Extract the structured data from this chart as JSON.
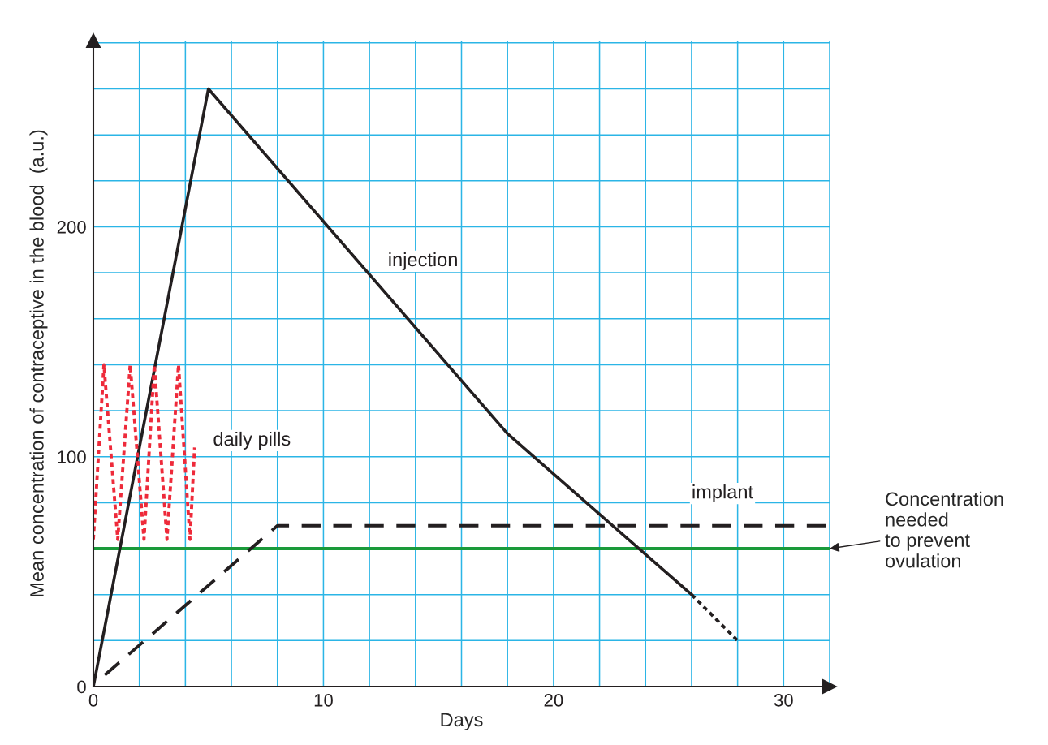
{
  "chart_data": {
    "type": "line",
    "xlabel": "Days",
    "ylabel": "Mean concentration of contraceptive in the blood  (a.u.)",
    "xlim": [
      0,
      32
    ],
    "ylim": [
      0,
      281
    ],
    "xticks": [
      0,
      {
        "value": 2,
        "label": null
      },
      {
        "value": 4,
        "label": null
      },
      {
        "value": 6,
        "label": null
      },
      {
        "value": 8,
        "label": null
      },
      10,
      {
        "value": 12,
        "label": null
      },
      {
        "value": 14,
        "label": null
      },
      {
        "value": 16,
        "label": null
      },
      {
        "value": 18,
        "label": null
      },
      20,
      {
        "value": 22,
        "label": null
      },
      {
        "value": 24,
        "label": null
      },
      {
        "value": 26,
        "label": null
      },
      {
        "value": 28,
        "label": null
      },
      30,
      {
        "value": 32,
        "label": null
      }
    ],
    "yticks": [
      0,
      {
        "value": 20,
        "label": null
      },
      {
        "value": 40,
        "label": null
      },
      {
        "value": 60,
        "label": null
      },
      {
        "value": 80,
        "label": null
      },
      100,
      {
        "value": 120,
        "label": null
      },
      {
        "value": 140,
        "label": null
      },
      {
        "value": 160,
        "label": null
      },
      {
        "value": 180,
        "label": null
      },
      200,
      {
        "value": 220,
        "label": null
      },
      {
        "value": 240,
        "label": null
      },
      {
        "value": 260,
        "label": null
      },
      {
        "value": 280,
        "label": null
      }
    ],
    "grid": true,
    "legend": false,
    "marker": "none",
    "series": [
      {
        "name": "injection",
        "color": "#231f20",
        "line_style": "solid",
        "x": [
          0,
          5,
          18,
          26
        ],
        "values": [
          0,
          260,
          110,
          40
        ]
      },
      {
        "color": "#231f20",
        "line_style": "dotted",
        "x": [
          26,
          28
        ],
        "values": [
          40,
          20
        ]
      },
      {
        "name": "daily pills",
        "color": "#ee2a3a",
        "line_style": "dotted",
        "x": [
          0,
          0.46,
          1.06,
          1.6,
          2.2,
          2.65,
          3.2,
          3.7,
          4.2,
          4.4
        ],
        "values": [
          64,
          140,
          64,
          140,
          64,
          140,
          64,
          140,
          64,
          104
        ]
      },
      {
        "name": "implant",
        "color": "#231f20",
        "line_style": "dashed",
        "x": [
          0.5,
          8,
          32
        ],
        "values": [
          5,
          70,
          70
        ]
      }
    ],
    "ref_lines": [
      {
        "axis": "y",
        "value": 60,
        "label": "Concentration\nneeded\nto prevent\novulation",
        "color": "#1a9a3a",
        "line_style": "solid"
      }
    ]
  }
}
